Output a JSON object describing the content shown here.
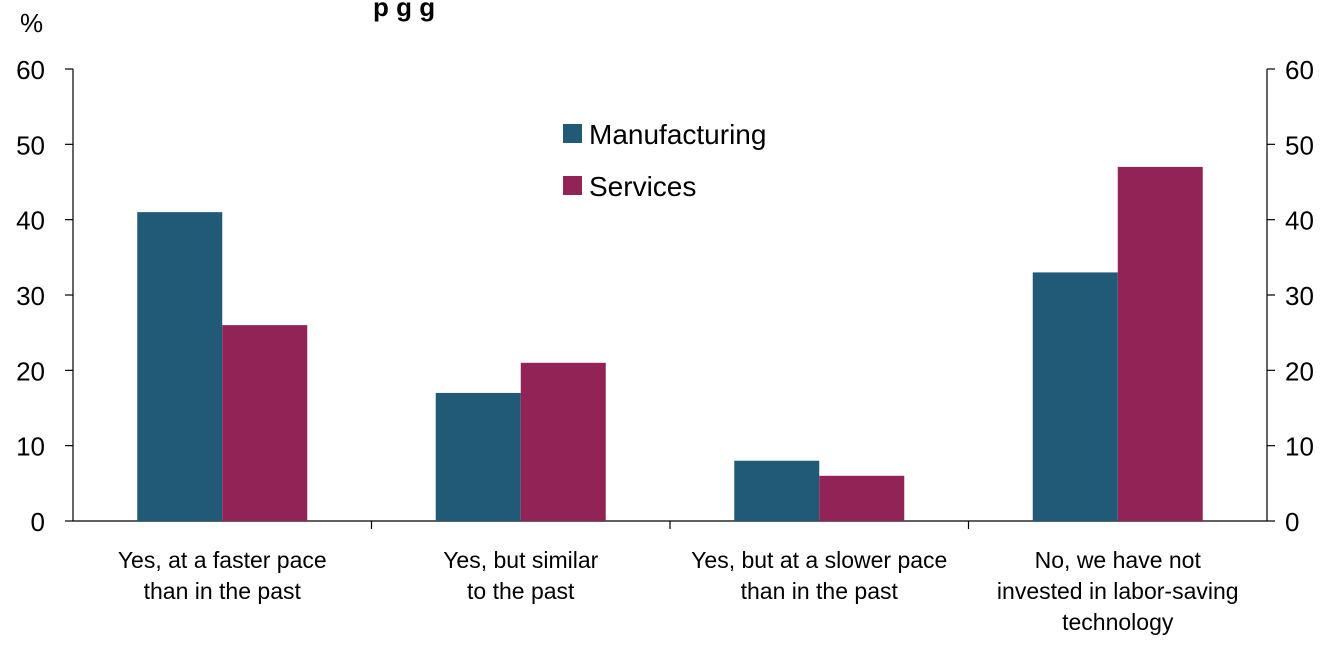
{
  "chart_data": {
    "type": "bar",
    "title": "p                                      g                         g",
    "y_unit": "%",
    "categories": [
      [
        "Yes, at a faster pace",
        "than in the past"
      ],
      [
        "Yes, but similar",
        "to the past"
      ],
      [
        "Yes, but at a slower pace",
        "than in the past"
      ],
      [
        "No, we have not",
        "invested in labor-saving",
        "technology"
      ]
    ],
    "series": [
      {
        "name": "Manufacturing",
        "color": "#215a76",
        "values": [
          41,
          17,
          8,
          33
        ]
      },
      {
        "name": "Services",
        "color": "#922357",
        "values": [
          26,
          21,
          6,
          47
        ]
      }
    ],
    "ylim": [
      0,
      60
    ],
    "yticks": [
      0,
      10,
      20,
      30,
      40,
      50,
      60
    ],
    "secondary_axis": true,
    "grid": false,
    "legend_position": "top-center"
  }
}
